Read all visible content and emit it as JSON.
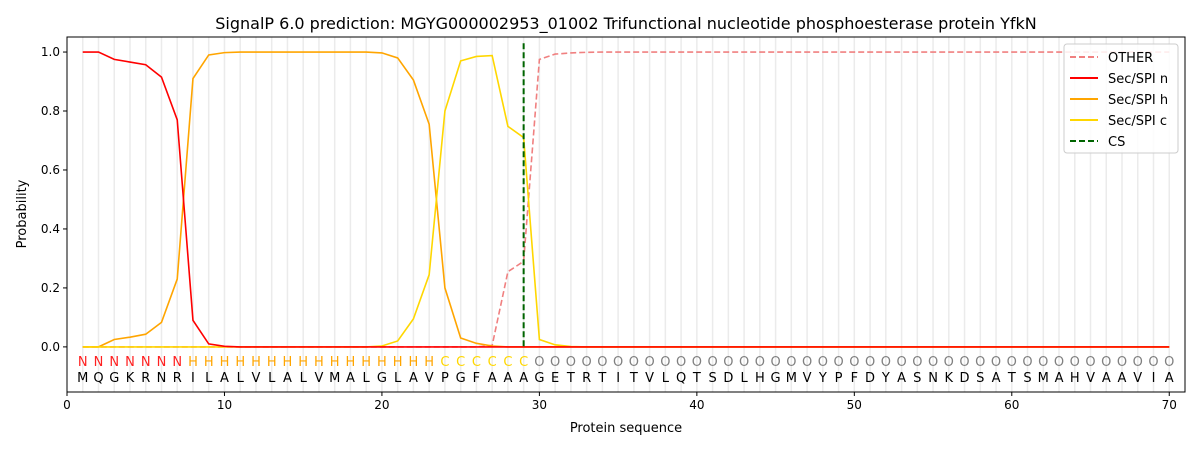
{
  "chart_data": {
    "type": "line",
    "title": "SignalP 6.0 prediction: MGYG000002953_01002 Trifunctional nucleotide phosphoesterase protein YfkN",
    "xlabel": "Protein sequence",
    "ylabel": "Probability",
    "xlim": [
      0,
      71
    ],
    "ylim": [
      -0.153,
      1.051
    ],
    "xticks": [
      0,
      10,
      20,
      30,
      40,
      50,
      60,
      70
    ],
    "yticks": [
      "0.0",
      "0.2",
      "0.4",
      "0.6",
      "0.8",
      "1.0"
    ],
    "grid": "vertical lines at each residue",
    "legend_position": "top-right",
    "sequence": "MQGKRNRILALVLALVMALGLAVPGFAAAGETRTITVLQTSDLHGMVYPFDYASNKDSATSMAHVAAVIA",
    "labels": "NNNNNNNHHHHHHHHHHHHHHHHCCCCCCOOOOOOOOOOOOOOOOOOOOOOOOOOOOOOOOOOOOOOOOO",
    "label_colors": {
      "N": "#ff2020",
      "H": "#ffa500",
      "C": "#ffd700",
      "O": "#808080"
    },
    "cleavage_site": 29,
    "series": [
      {
        "name": "OTHER",
        "color": "#f08080",
        "dash": true,
        "values": [
          0,
          0,
          0,
          0,
          0,
          0,
          0,
          0,
          0,
          0,
          0,
          0,
          0,
          0,
          0,
          0,
          0,
          0,
          0,
          0,
          0,
          0,
          0,
          0,
          0,
          0,
          0.005,
          0.255,
          0.29,
          0.975,
          0.993,
          0.997,
          0.999,
          1,
          1,
          1,
          1,
          1,
          1,
          1,
          1,
          1,
          1,
          1,
          1,
          1,
          1,
          1,
          1,
          1,
          1,
          1,
          1,
          1,
          1,
          1,
          1,
          1,
          1,
          1,
          1,
          1,
          1,
          1,
          1,
          1,
          1,
          1,
          1,
          1
        ]
      },
      {
        "name": "Sec/SPI n",
        "color": "#ff0000",
        "dash": false,
        "values": [
          1,
          1,
          0.975,
          0.966,
          0.957,
          0.915,
          0.77,
          0.09,
          0.01,
          0.002,
          0,
          0,
          0,
          0,
          0,
          0,
          0,
          0,
          0,
          0,
          0,
          0,
          0,
          0,
          0,
          0,
          0,
          0,
          0,
          0,
          0,
          0,
          0,
          0,
          0,
          0,
          0,
          0,
          0,
          0,
          0,
          0,
          0,
          0,
          0,
          0,
          0,
          0,
          0,
          0,
          0,
          0,
          0,
          0,
          0,
          0,
          0,
          0,
          0,
          0,
          0,
          0,
          0,
          0,
          0,
          0,
          0,
          0,
          0,
          0
        ]
      },
      {
        "name": "Sec/SPI h",
        "color": "#ffa500",
        "dash": false,
        "values": [
          0,
          0,
          0.025,
          0.033,
          0.043,
          0.083,
          0.23,
          0.91,
          0.99,
          0.998,
          1,
          1,
          1,
          1,
          1,
          1,
          1,
          1,
          1,
          0.997,
          0.98,
          0.905,
          0.755,
          0.2,
          0.03,
          0.012,
          0.003,
          0,
          0,
          0,
          0,
          0,
          0,
          0,
          0,
          0,
          0,
          0,
          0,
          0,
          0,
          0,
          0,
          0,
          0,
          0,
          0,
          0,
          0,
          0,
          0,
          0,
          0,
          0,
          0,
          0,
          0,
          0,
          0,
          0,
          0,
          0,
          0,
          0,
          0,
          0,
          0,
          0,
          0,
          0
        ]
      },
      {
        "name": "Sec/SPI c",
        "color": "#ffd700",
        "dash": false,
        "values": [
          0,
          0,
          0,
          0,
          0,
          0,
          0,
          0,
          0,
          0,
          0,
          0,
          0,
          0,
          0,
          0,
          0,
          0,
          0,
          0.003,
          0.02,
          0.095,
          0.245,
          0.8,
          0.97,
          0.985,
          0.988,
          0.748,
          0.71,
          0.025,
          0.007,
          0.001,
          0,
          0,
          0,
          0,
          0,
          0,
          0,
          0,
          0,
          0,
          0,
          0,
          0,
          0,
          0,
          0,
          0,
          0,
          0,
          0,
          0,
          0,
          0,
          0,
          0,
          0,
          0,
          0,
          0,
          0,
          0,
          0,
          0,
          0,
          0,
          0,
          0,
          0
        ]
      },
      {
        "name": "CS",
        "color": "#006400",
        "dash": true,
        "vertical_at": 29
      }
    ]
  }
}
